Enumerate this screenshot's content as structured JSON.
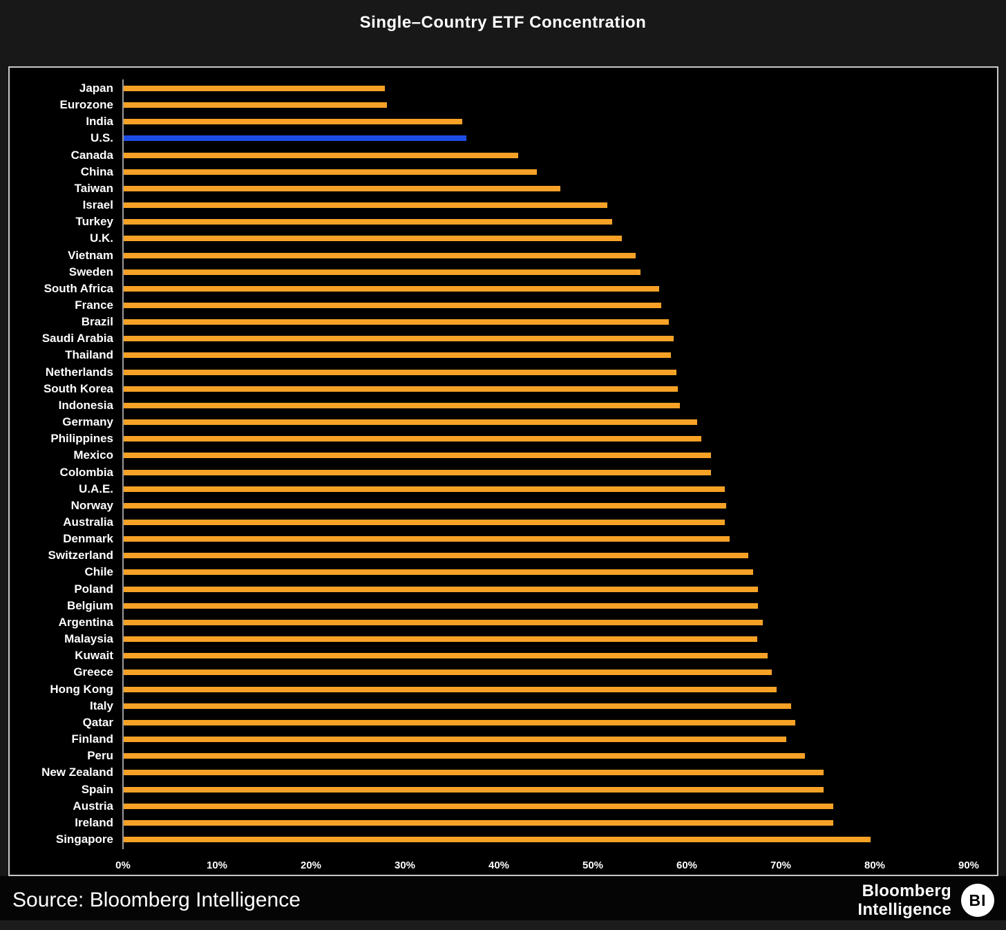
{
  "title": "Single–Country ETF Concentration",
  "source": "Source: Bloomberg Intelligence",
  "branding": {
    "line1": "Bloomberg",
    "line2": "Intelligence",
    "badge": "BI"
  },
  "colors": {
    "bar": "#f7a226",
    "highlight": "#1d4de4",
    "panel_bg": "#000000",
    "page_bg": "#181818",
    "panel_border": "#c9c9c9",
    "text": "#ffffff",
    "axis_line": "#9a9a9a"
  },
  "chart_data": {
    "type": "bar",
    "orientation": "horizontal",
    "title": "Single–Country ETF Concentration",
    "xlabel": "",
    "ylabel": "",
    "xlim": [
      0,
      90
    ],
    "x_ticks": [
      "0%",
      "10%",
      "20%",
      "30%",
      "40%",
      "50%",
      "60%",
      "70%",
      "80%",
      "90%"
    ],
    "grid": false,
    "legend": false,
    "highlight_category": "U.S.",
    "categories": [
      "Japan",
      "Eurozone",
      "India",
      "U.S.",
      "Canada",
      "China",
      "Taiwan",
      "Israel",
      "Turkey",
      "U.K.",
      "Vietnam",
      "Sweden",
      "South Africa",
      "France",
      "Brazil",
      "Saudi Arabia",
      "Thailand",
      "Netherlands",
      "South Korea",
      "Indonesia",
      "Germany",
      "Philippines",
      "Mexico",
      "Colombia",
      "U.A.E.",
      "Norway",
      "Australia",
      "Denmark",
      "Switzerland",
      "Chile",
      "Poland",
      "Belgium",
      "Argentina",
      "Malaysia",
      "Kuwait",
      "Greece",
      "Hong Kong",
      "Italy",
      "Qatar",
      "Finland",
      "Peru",
      "New Zealand",
      "Spain",
      "Austria",
      "Ireland",
      "Singapore"
    ],
    "values": [
      27.8,
      28,
      36,
      36.5,
      42,
      44,
      46.5,
      51.5,
      52,
      53,
      54.5,
      55,
      57,
      57.2,
      58,
      58.5,
      58.2,
      58.8,
      59,
      59.2,
      61,
      61.5,
      62.5,
      62.5,
      64,
      64.1,
      64,
      64.5,
      66.5,
      67,
      67.5,
      67.5,
      68,
      67.4,
      68.5,
      69,
      69.5,
      71,
      71.5,
      70.5,
      72.5,
      74.5,
      74.5,
      75.5,
      75.5,
      79.5
    ]
  }
}
